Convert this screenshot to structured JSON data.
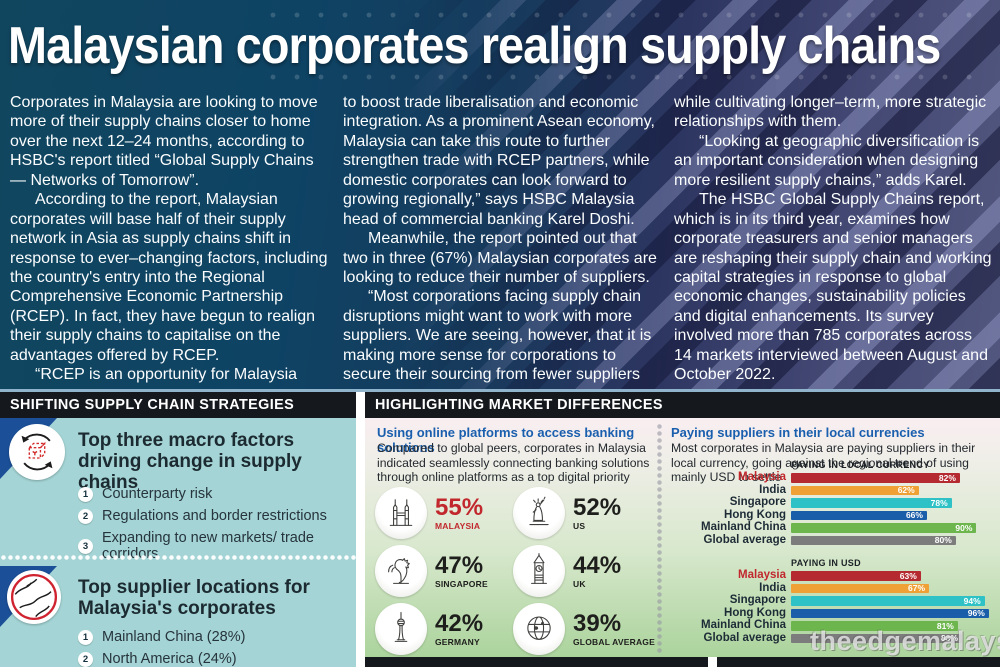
{
  "page": {
    "title": "Malaysian corporates realign supply chains",
    "watermark": "theedgemalaysia"
  },
  "article": {
    "col1": [
      "Corporates in Malaysia are looking to move more of their supply chains closer to home over the next 12–24 months, according to HSBC's report titled “Global Supply Chains — Networks of Tomorrow”.",
      "According to the report, Malaysian corporates will base half of their supply network in Asia as supply chains shift in response to ever–changing factors, including the country's entry into the Regional Comprehensive Economic Partnership (RCEP). In fact, they have begun to realign their supply chains to capitalise on the advantages offered by RCEP.",
      "“RCEP is an opportunity for Malaysia"
    ],
    "col2": [
      "to boost trade liberalisation and economic integration. As a prominent Asean economy, Malaysia can take this route to further strengthen trade with RCEP partners, while domestic corporates can look forward to growing regionally,” says HSBC Malaysia head of commercial banking Karel Doshi.",
      "Meanwhile, the report pointed out that two in three (67%) Malaysian corporates are looking to reduce their number of suppliers.",
      "“Most corporations facing supply chain disruptions might want to work with more suppliers. We are seeing, however, that it is making more sense for corporations to secure their sourcing from fewer suppliers"
    ],
    "col3": [
      "while cultivating longer–term, more strategic relationships with them.",
      "“Looking at geographic diversification is an important consideration when designing more resilient supply chains,” adds Karel.",
      "The HSBC Global Supply Chains report, which is in its third year, examines how corporate treasurers and senior managers are reshaping their supply chain and working capital strategies in response to global economic changes, sustainability policies and digital enhancements. Its survey involved more than 785 corporates across 14 markets interviewed between August and October 2022."
    ]
  },
  "left_panel": {
    "header": "SHIFTING SUPPLY CHAIN STRATEGIES",
    "sections": [
      {
        "icon": "supply-network-icon",
        "title": "Top three macro factors driving change in supply chains",
        "items": [
          "Counterparty risk",
          "Regulations and border restrictions",
          "Expanding to new markets/ trade corridors"
        ]
      },
      {
        "icon": "world-map-icon",
        "title": "Top supplier locations for Malaysia's corporates",
        "items": [
          "Mainland China (28%)",
          "North America (24%)"
        ]
      }
    ]
  },
  "right_panel": {
    "header": "HIGHLIGHTING MARKET DIFFERENCES",
    "online_platforms": {
      "title": "Using online platforms to access banking solutions",
      "description": "Compared to global peers, corporates in Malaysia indicated seamlessly connecting banking solutions through online platforms as a top digital priority",
      "highlight_color": "#c1272d",
      "stats": [
        {
          "value": "55%",
          "label": "MALAYSIA",
          "icon": "petronas-towers-icon",
          "highlight": true
        },
        {
          "value": "52%",
          "label": "US",
          "icon": "statue-of-liberty-icon",
          "highlight": false
        },
        {
          "value": "47%",
          "label": "SINGAPORE",
          "icon": "merlion-icon",
          "highlight": false
        },
        {
          "value": "44%",
          "label": "UK",
          "icon": "big-ben-icon",
          "highlight": false
        },
        {
          "value": "42%",
          "label": "GERMANY",
          "icon": "berlin-tower-icon",
          "highlight": false
        },
        {
          "value": "39%",
          "label": "GLOBAL AVERAGE",
          "icon": "globe-icon",
          "highlight": false
        }
      ]
    },
    "local_currencies": {
      "title": "Paying suppliers in their local currencies",
      "description": "Most corporates in Malaysia are paying suppliers in their local currency, going against the regional trend of using mainly USD to settle"
    }
  },
  "chart_data": [
    {
      "type": "bar",
      "orientation": "horizontal",
      "title": "PAYING IN LOCAL CURRENCY",
      "categories": [
        "Malaysia",
        "India",
        "Singapore",
        "Hong Kong",
        "Mainland China",
        "Global average"
      ],
      "values": [
        82,
        62,
        78,
        66,
        90,
        80
      ],
      "unit": "%",
      "xlim": [
        0,
        100
      ],
      "colors": [
        "#b52a31",
        "#f0a136",
        "#2ec2c6",
        "#1a5da8",
        "#6db64e",
        "#7c7c7c"
      ],
      "highlight_category": "Malaysia",
      "highlight_color": "#c1272d",
      "value_labels": "inside-end, white",
      "grid": false,
      "legend": false
    },
    {
      "type": "bar",
      "orientation": "horizontal",
      "title": "PAYING IN USD",
      "categories": [
        "Malaysia",
        "India",
        "Singapore",
        "Hong Kong",
        "Mainland China",
        "Global average"
      ],
      "values": [
        63,
        67,
        94,
        96,
        81,
        83
      ],
      "unit": "%",
      "xlim": [
        0,
        100
      ],
      "colors": [
        "#b52a31",
        "#f0a136",
        "#2ec2c6",
        "#1a5da8",
        "#6db64e",
        "#7c7c7c"
      ],
      "highlight_category": "Malaysia",
      "highlight_color": "#c1272d",
      "value_labels": "inside-end, white",
      "grid": false,
      "legend": false
    }
  ]
}
